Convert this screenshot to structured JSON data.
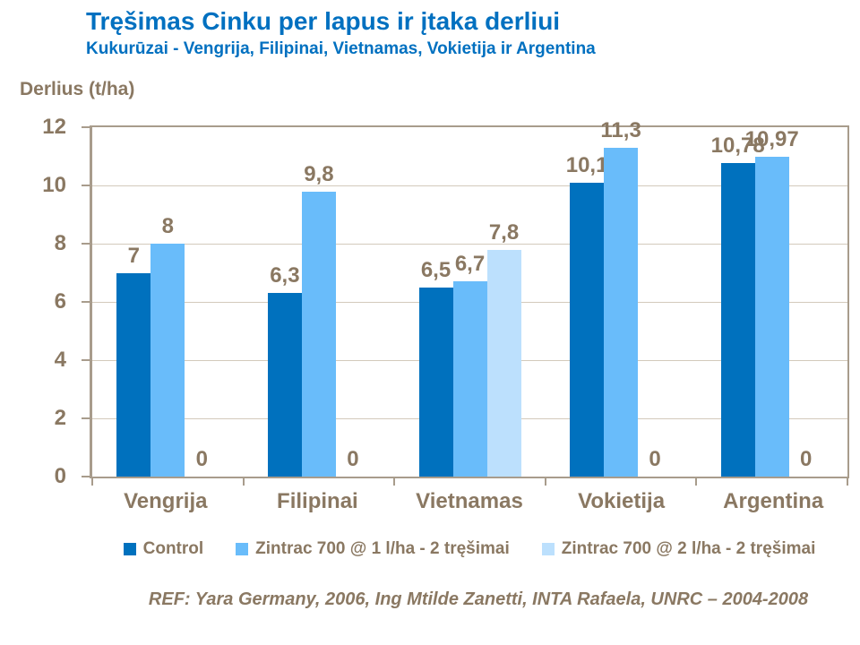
{
  "header": {
    "title": "Tręšimas Cinku per lapus ir įtaka derliui",
    "subtitle": "Kukurūzai - Vengrija, Filipinai, Vietnamas, Vokietija ir Argentina"
  },
  "colors": {
    "title_blue": "#0070C0",
    "text_taupe": "#8A7862",
    "gridline": "#D3CABC",
    "axis_border": "#A89C8C",
    "background": "#FFFFFF"
  },
  "chart_data": {
    "type": "bar",
    "title": "Tręšimas Cinku per lapus ir įtaka derliui",
    "subtitle": "Kukurūzai - Vengrija, Filipinai, Vietnamas, Vokietija ir Argentina",
    "ylabel": "Derlius (t/ha)",
    "xlabel": "",
    "ylim": [
      0,
      12
    ],
    "yticks": [
      0,
      2,
      4,
      6,
      8,
      10,
      12
    ],
    "grid": "horizontal",
    "legend_position": "bottom",
    "categories": [
      "Vengrija",
      "Filipinai",
      "Vietnamas",
      "Vokietija",
      "Argentina"
    ],
    "series": [
      {
        "name": "Control",
        "color": "#0071BE",
        "values": [
          7,
          6.3,
          6.5,
          10.1,
          10.78
        ],
        "labels": [
          "7",
          "6,3",
          "6,5",
          "10,1",
          "10,78"
        ]
      },
      {
        "name": "Zintrac 700 @ 1 l/ha - 2 tręšimai",
        "color": "#69BCFA",
        "values": [
          8,
          9.8,
          6.7,
          11.3,
          10.97
        ],
        "labels": [
          "8",
          "9,8",
          "6,7",
          "11,3",
          "10,97"
        ]
      },
      {
        "name": "Zintrac 700 @ 2 l/ha - 2 tręšimai",
        "color": "#BCE0FD",
        "values": [
          0,
          0,
          7.8,
          0,
          0
        ],
        "labels": [
          "0",
          "0",
          "7,8",
          "0",
          "0"
        ]
      }
    ]
  },
  "footer": {
    "text": "REF: Yara Germany, 2006, Ing Mtilde Zanetti, INTA Rafaela, UNRC – 2004-2008"
  }
}
